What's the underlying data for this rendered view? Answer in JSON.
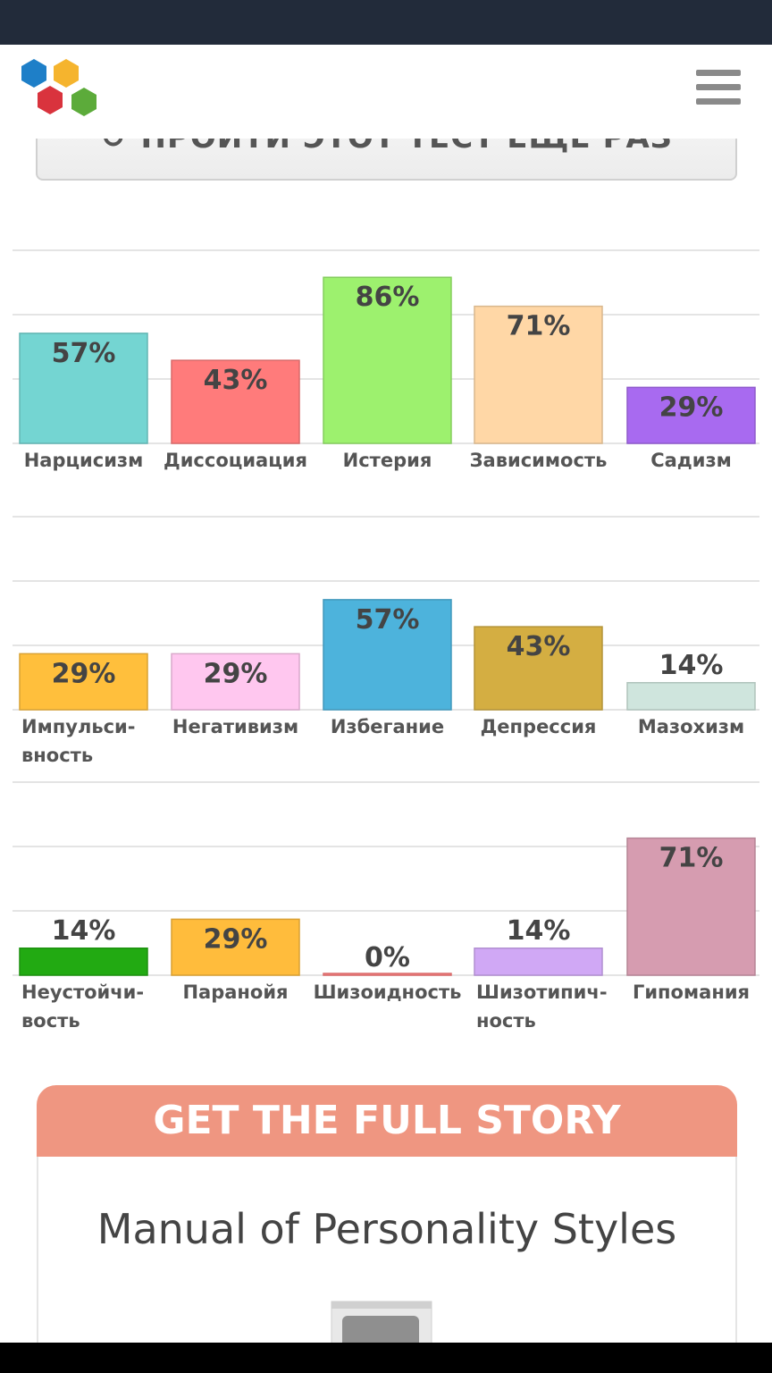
{
  "header": {
    "logo": "hexagon-logo",
    "menu_icon": "hamburger-icon"
  },
  "retake_button": {
    "label": "ПРОЙТИ ЭТОТ ТЕСТ ЕЩЕ РАЗ",
    "icon": "refresh-icon"
  },
  "chart_data": [
    {
      "type": "bar",
      "ylim": [
        0,
        100
      ],
      "grid": true,
      "categories": [
        "Нарцисизм",
        "Диссоциация",
        "Истерия",
        "Зависимость",
        "Садизм"
      ],
      "values": [
        57,
        43,
        86,
        71,
        29
      ],
      "value_labels": [
        "57%",
        "43%",
        "86%",
        "71%",
        "29%"
      ],
      "colors": [
        "#74d5d2",
        "#ff7b7b",
        "#9df16e",
        "#ffd7a6",
        "#a86af0"
      ]
    },
    {
      "type": "bar",
      "ylim": [
        0,
        100
      ],
      "grid": true,
      "categories": [
        [
          "Импульси-",
          "вность"
        ],
        [
          "Негативизм"
        ],
        [
          "Избегание"
        ],
        [
          "Депрессия"
        ],
        [
          "Мазохизм"
        ]
      ],
      "values": [
        29,
        29,
        57,
        43,
        14
      ],
      "value_labels": [
        "29%",
        "29%",
        "57%",
        "43%",
        "14%"
      ],
      "colors": [
        "#ffbf3c",
        "#ffc7ef",
        "#4db3dc",
        "#d4ae42",
        "#cfe5dd"
      ]
    },
    {
      "type": "bar",
      "ylim": [
        0,
        100
      ],
      "grid": true,
      "categories": [
        [
          "Неустойчи-",
          "вость"
        ],
        [
          "Паранойя"
        ],
        [
          "Шизоидность"
        ],
        [
          "Шизотипич-",
          "ность"
        ],
        [
          "Гипомания"
        ]
      ],
      "values": [
        14,
        29,
        0,
        14,
        71
      ],
      "value_labels": [
        "14%",
        "29%",
        "0%",
        "14%",
        "71%"
      ],
      "colors": [
        "#22aa12",
        "#ffbc3c",
        "#ff8080",
        "#d0a8f5",
        "#d69cb0"
      ]
    }
  ],
  "story": {
    "header": "GET THE FULL STORY",
    "title": "Manual of Personality Styles",
    "image_icon": "book-cover-image"
  }
}
